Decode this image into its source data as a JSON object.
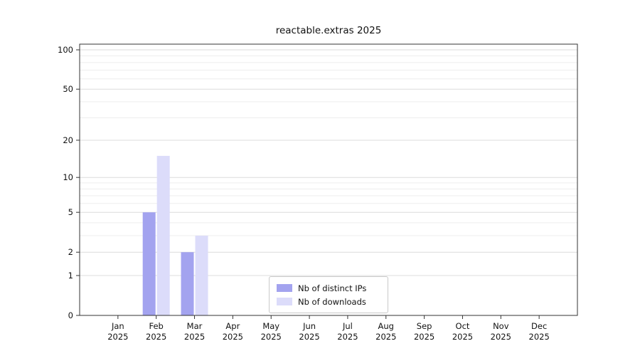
{
  "chart_data": {
    "type": "bar",
    "title": "reactable.extras 2025",
    "categories": [
      "Jan",
      "Feb",
      "Mar",
      "Apr",
      "May",
      "Jun",
      "Jul",
      "Aug",
      "Sep",
      "Oct",
      "Nov",
      "Dec"
    ],
    "year": "2025",
    "series": [
      {
        "name": "Nb of distinct IPs",
        "color": "#a3a3ef",
        "values": [
          0,
          5,
          2,
          0,
          0,
          0,
          0,
          0,
          0,
          0,
          0,
          0
        ]
      },
      {
        "name": "Nb of downloads",
        "color": "#dcdcfa",
        "values": [
          0,
          15,
          3,
          0,
          0,
          0,
          0,
          0,
          0,
          0,
          0,
          0
        ]
      }
    ],
    "y_ticks": [
      0,
      1,
      2,
      5,
      10,
      20,
      50,
      100
    ],
    "y_scale": "log1p",
    "ylim": [
      0,
      110
    ],
    "grid": true,
    "legend_position": "bottom-center",
    "xlabel": "",
    "ylabel": ""
  }
}
